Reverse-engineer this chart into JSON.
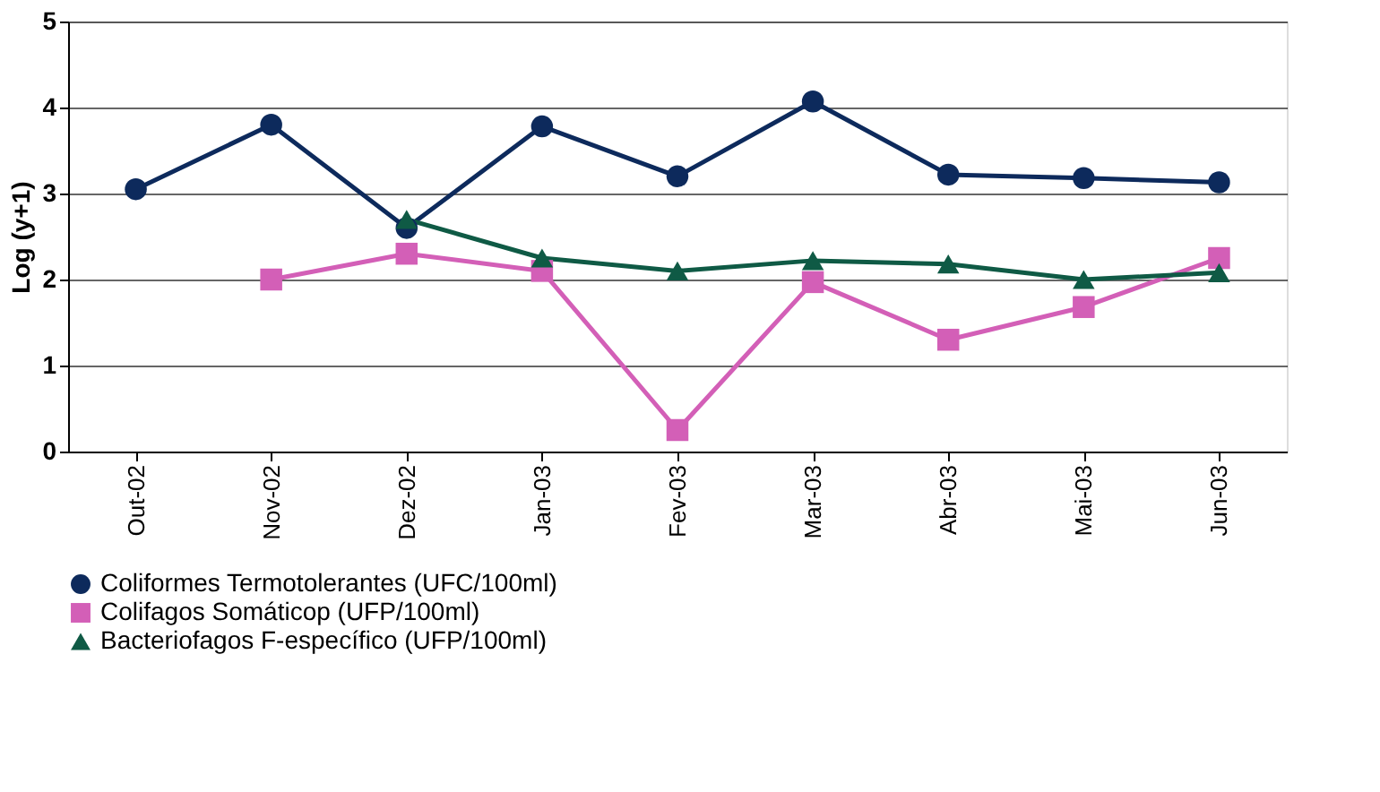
{
  "chart_data": {
    "type": "line",
    "ylabel": "Log (y+1)",
    "categories": [
      "Out-02",
      "Nov-02",
      "Dez-02",
      "Jan-03",
      "Fev-03",
      "Mar-03",
      "Abr-03",
      "Mai-03",
      "Jun-03"
    ],
    "series": [
      {
        "name": "Coliformes Termotolerantes (UFC/100ml)",
        "color": "#0d2a5c",
        "marker": "circle",
        "values": [
          3.05,
          3.8,
          2.6,
          3.78,
          3.2,
          4.07,
          3.22,
          3.18,
          3.13
        ]
      },
      {
        "name": "Colifagos Somáticop (UFP/100ml)",
        "color": "#d35fb7",
        "marker": "square",
        "values": [
          null,
          2.0,
          2.3,
          2.1,
          0.25,
          1.97,
          1.3,
          1.68,
          2.25
        ]
      },
      {
        "name": "Bacteriofagos F-específico (UFP/100ml)",
        "color": "#0f5a45",
        "marker": "triangle",
        "values": [
          null,
          null,
          2.7,
          2.25,
          2.1,
          2.22,
          2.18,
          2.0,
          2.08
        ]
      }
    ],
    "ylim": [
      0,
      5
    ],
    "yticks": [
      0,
      1,
      2,
      3,
      4,
      5
    ],
    "grid": "y",
    "legend": "bottom",
    "line_style": "solid"
  }
}
